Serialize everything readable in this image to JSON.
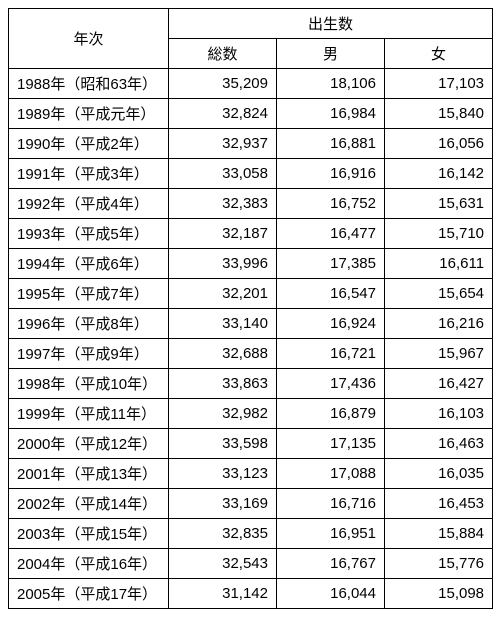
{
  "table": {
    "type": "table",
    "header": {
      "year": "年次",
      "births": "出生数",
      "total": "総数",
      "male": "男",
      "female": "女"
    },
    "rows": [
      {
        "year": "1988年（昭和63年）",
        "total": "35,209",
        "male": "18,106",
        "female": "17,103"
      },
      {
        "year": "1989年（平成元年）",
        "total": "32,824",
        "male": "16,984",
        "female": "15,840"
      },
      {
        "year": "1990年（平成2年）",
        "total": "32,937",
        "male": "16,881",
        "female": "16,056"
      },
      {
        "year": "1991年（平成3年）",
        "total": "33,058",
        "male": "16,916",
        "female": "16,142"
      },
      {
        "year": "1992年（平成4年）",
        "total": "32,383",
        "male": "16,752",
        "female": "15,631"
      },
      {
        "year": "1993年（平成5年）",
        "total": "32,187",
        "male": "16,477",
        "female": "15,710"
      },
      {
        "year": "1994年（平成6年）",
        "total": "33,996",
        "male": "17,385",
        "female": "16,611"
      },
      {
        "year": "1995年（平成7年）",
        "total": "32,201",
        "male": "16,547",
        "female": "15,654"
      },
      {
        "year": "1996年（平成8年）",
        "total": "33,140",
        "male": "16,924",
        "female": "16,216"
      },
      {
        "year": "1997年（平成9年）",
        "total": "32,688",
        "male": "16,721",
        "female": "15,967"
      },
      {
        "year": "1998年（平成10年）",
        "total": "33,863",
        "male": "17,436",
        "female": "16,427"
      },
      {
        "year": "1999年（平成11年）",
        "total": "32,982",
        "male": "16,879",
        "female": "16,103"
      },
      {
        "year": "2000年（平成12年）",
        "total": "33,598",
        "male": "17,135",
        "female": "16,463"
      },
      {
        "year": "2001年（平成13年）",
        "total": "33,123",
        "male": "17,088",
        "female": "16,035"
      },
      {
        "year": "2002年（平成14年）",
        "total": "33,169",
        "male": "16,716",
        "female": "16,453"
      },
      {
        "year": "2003年（平成15年）",
        "total": "32,835",
        "male": "16,951",
        "female": "15,884"
      },
      {
        "year": "2004年（平成16年）",
        "total": "32,543",
        "male": "16,767",
        "female": "15,776"
      },
      {
        "year": "2005年（平成17年）",
        "total": "31,142",
        "male": "16,044",
        "female": "15,098"
      }
    ]
  }
}
